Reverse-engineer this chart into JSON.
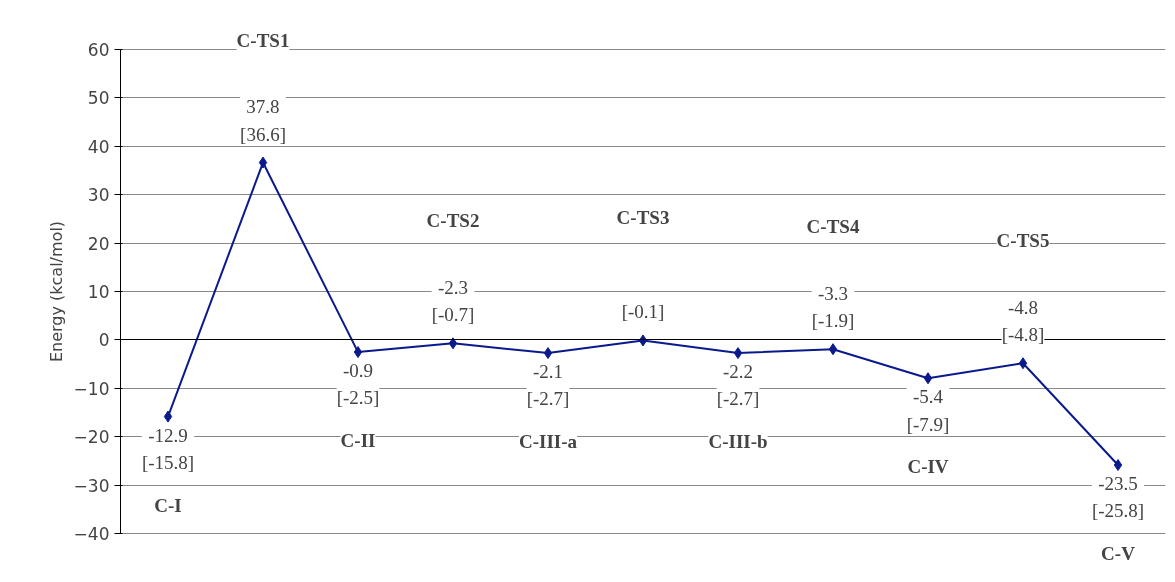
{
  "chart_data": {
    "type": "line",
    "ylabel": "Energy (kcal/mol)",
    "categories": [
      "C-I",
      "C-TS1",
      "C-II",
      "C-TS2",
      "C-III-a",
      "C-TS3",
      "C-III-b",
      "C-TS4",
      "C-IV",
      "C-TS5",
      "C-V"
    ],
    "series": [
      {
        "color": "#0a1a8c",
        "values": [
          -15.8,
          36.6,
          -2.5,
          -0.7,
          -2.7,
          -0.1,
          -2.7,
          -1.9,
          -7.9,
          -4.8,
          -25.8
        ],
        "value_labels": [
          "-12.9\n[-15.8]",
          "37.8\n[36.6]",
          "-0.9\n[-2.5]",
          "-2.3\n[-0.7]",
          "-2.1\n[-2.7]",
          "[-0.1]",
          "-2.2\n[-2.7]",
          "-3.3\n[-1.9]",
          "-5.4\n[-7.9]",
          "-4.8\n[-4.8]",
          "-23.5\n[-25.8]"
        ]
      }
    ],
    "ylim": [
      -40,
      60
    ],
    "yticks": [
      -40,
      -30,
      -20,
      -10,
      0,
      10,
      20,
      30,
      40,
      50,
      60
    ],
    "grid": "y",
    "marker": "diamond",
    "line_style": "solid",
    "tick_labels": "y"
  }
}
